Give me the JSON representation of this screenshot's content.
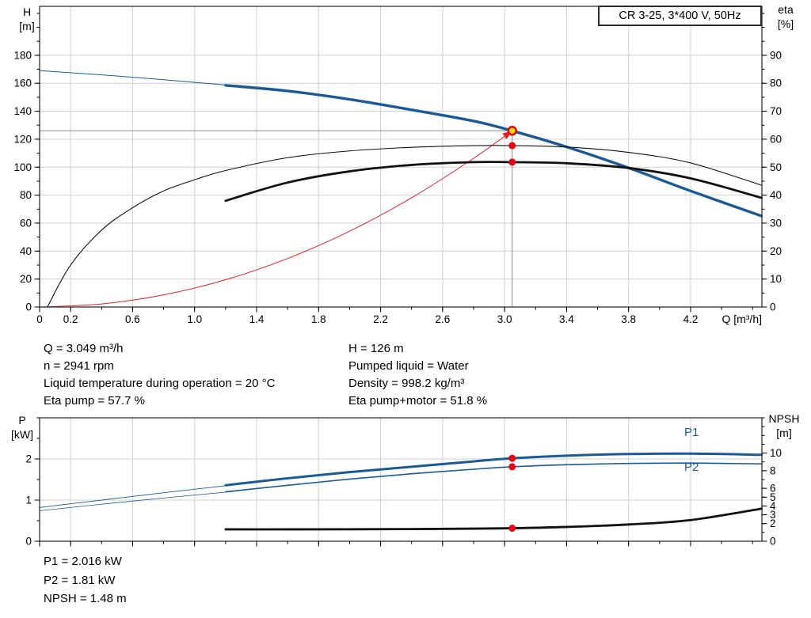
{
  "title_box": "CR 3-25, 3*400 V, 50Hz",
  "colors": {
    "curve_blue": "#1a5a96",
    "curve_black": "#111111",
    "curve_red": "#dd2222",
    "marker_red": "#e30613",
    "duty_fill": "#ffd800",
    "grid": "#d0d0d0",
    "crosshair": "#8c8c8c",
    "frame": "#333333"
  },
  "axis_titles": {
    "top_left_1": "H",
    "top_left_2": "[m]",
    "top_right_1": "eta",
    "top_right_2": "[%]",
    "x": "Q [m³/h]",
    "bottom_left_1": "P",
    "bottom_left_2": "[kW]",
    "bottom_right_1": "NPSH",
    "bottom_right_2": "[m]"
  },
  "curve_labels": {
    "p1": "P1",
    "p2": "P2"
  },
  "info_top_left": [
    "Q = 3.049 m³/h",
    "n = 2941 rpm",
    "Liquid temperature during operation = 20 °C",
    "Eta pump = 57.7 %"
  ],
  "info_top_right": [
    "H = 126 m",
    "Pumped liquid = Water",
    "Density = 998.2 kg/m³",
    "Eta pump+motor = 51.8 %"
  ],
  "info_bottom": [
    "P1 = 2.016 kW",
    "P2 = 1.81 kW",
    "NPSH = 1.48 m"
  ],
  "chart_data": [
    {
      "name": "hq-eta-chart",
      "type": "line",
      "title": "CR 3-25, 3*400 V, 50Hz",
      "xlabel": "Q [m³/h]",
      "x_axis": {
        "min": 0,
        "max": 4.66,
        "minor_step": 0.2,
        "ticks": [
          [
            0,
            "0"
          ],
          [
            0.2,
            "0.2"
          ],
          [
            0.6,
            "0.6"
          ],
          [
            1.0,
            "1.0"
          ],
          [
            1.4,
            "1.4"
          ],
          [
            1.8,
            "1.8"
          ],
          [
            2.2,
            "2.2"
          ],
          [
            2.6,
            "2.6"
          ],
          [
            3.0,
            "3.0"
          ],
          [
            3.4,
            "3.4"
          ],
          [
            3.8,
            "3.8"
          ],
          [
            4.2,
            "4.2"
          ]
        ]
      },
      "y_left": {
        "label": "H [m]",
        "min": 0,
        "max": 215,
        "minor_step": 10,
        "ticks": [
          [
            0,
            "0"
          ],
          [
            20,
            "20"
          ],
          [
            40,
            "40"
          ],
          [
            60,
            "60"
          ],
          [
            80,
            "80"
          ],
          [
            100,
            "100"
          ],
          [
            120,
            "120"
          ],
          [
            140,
            "140"
          ],
          [
            160,
            "160"
          ],
          [
            180,
            "180"
          ]
        ]
      },
      "y_right": {
        "label": "eta [%]",
        "min": 0,
        "max": 107.5,
        "minor_step": 5,
        "ticks": [
          [
            0,
            "0"
          ],
          [
            10,
            "10"
          ],
          [
            20,
            "20"
          ],
          [
            30,
            "30"
          ],
          [
            40,
            "40"
          ],
          [
            50,
            "50"
          ],
          [
            60,
            "60"
          ],
          [
            70,
            "70"
          ],
          [
            80,
            "80"
          ],
          [
            90,
            "90"
          ]
        ]
      },
      "crosshair": {
        "q": 3.049,
        "value": 126,
        "axis": "left"
      },
      "series": [
        {
          "name": "system-curve",
          "axis": "left",
          "color_key": "curve_red",
          "width": 1,
          "arrow": true,
          "points": [
            [
              0,
              0
            ],
            [
              0.4,
              2.2
            ],
            [
              0.8,
              8.7
            ],
            [
              1.2,
              19.5
            ],
            [
              1.6,
              34.7
            ],
            [
              2.0,
              54.2
            ],
            [
              2.4,
              78.1
            ],
            [
              2.8,
              106.3
            ],
            [
              3.049,
              126
            ]
          ]
        },
        {
          "name": "head-curve-lead",
          "axis": "left",
          "color_key": "curve_blue",
          "width": 1,
          "points": [
            [
              0,
              169
            ],
            [
              0.4,
              166
            ],
            [
              0.8,
              162.5
            ],
            [
              1.25,
              158.3
            ]
          ]
        },
        {
          "name": "head-curve",
          "axis": "left",
          "color_key": "curve_blue",
          "width": 3.4,
          "points": [
            [
              1.2,
              158.5
            ],
            [
              1.6,
              154.5
            ],
            [
              2.0,
              148.5
            ],
            [
              2.4,
              141
            ],
            [
              2.8,
              133
            ],
            [
              3.049,
              126
            ],
            [
              3.4,
              114.5
            ],
            [
              3.8,
              99.5
            ],
            [
              4.2,
              83
            ],
            [
              4.66,
              65
            ]
          ]
        },
        {
          "name": "eta-pump-curve",
          "axis": "right",
          "color_key": "curve_black",
          "width": 1.1,
          "points": [
            [
              0.05,
              0
            ],
            [
              0.2,
              15
            ],
            [
              0.4,
              27.5
            ],
            [
              0.6,
              35.5
            ],
            [
              0.8,
              41.5
            ],
            [
              1.0,
              45.5
            ],
            [
              1.2,
              48.8
            ],
            [
              1.6,
              53.4
            ],
            [
              2.0,
              55.8
            ],
            [
              2.4,
              57.1
            ],
            [
              2.8,
              57.7
            ],
            [
              3.049,
              57.7
            ],
            [
              3.4,
              57.2
            ],
            [
              3.8,
              55.3
            ],
            [
              4.2,
              51.5
            ],
            [
              4.66,
              43.5
            ]
          ]
        },
        {
          "name": "eta-pump-motor-curve",
          "axis": "right",
          "color_key": "curve_black",
          "width": 2.8,
          "points": [
            [
              1.2,
              38
            ],
            [
              1.6,
              44.5
            ],
            [
              2.0,
              48.5
            ],
            [
              2.4,
              50.8
            ],
            [
              2.8,
              51.8
            ],
            [
              3.049,
              51.8
            ],
            [
              3.4,
              51.4
            ],
            [
              3.8,
              49.7
            ],
            [
              4.2,
              46
            ],
            [
              4.66,
              39
            ]
          ]
        }
      ],
      "markers": [
        {
          "q": 3.049,
          "v": 126,
          "axis": "left",
          "style": "duty",
          "name": "duty-point-marker"
        },
        {
          "q": 3.049,
          "v": 57.7,
          "axis": "right",
          "style": "dot",
          "name": "eta-pump-point"
        },
        {
          "q": 3.049,
          "v": 51.8,
          "axis": "right",
          "style": "dot",
          "name": "eta-pump-motor-point"
        }
      ]
    },
    {
      "name": "power-npsh-chart",
      "type": "line",
      "xlabel": "Q [m³/h]",
      "x_axis": {
        "min": 0,
        "max": 4.66,
        "minor_step": 0.2,
        "ticks": [
          [
            0,
            "0"
          ],
          [
            0.2,
            "0.2"
          ],
          [
            0.6,
            "0.6"
          ],
          [
            1.0,
            "1.0"
          ],
          [
            1.4,
            "1.4"
          ],
          [
            1.8,
            "1.8"
          ],
          [
            2.2,
            "2.2"
          ],
          [
            2.6,
            "2.6"
          ],
          [
            3.0,
            "3.0"
          ],
          [
            3.4,
            "3.4"
          ],
          [
            3.8,
            "3.8"
          ],
          [
            4.2,
            "4.2"
          ]
        ]
      },
      "y_left": {
        "label": "P [kW]",
        "min": 0,
        "max": 3,
        "minor_step": 0.5,
        "ticks": [
          [
            0,
            "0"
          ],
          [
            1,
            "1"
          ],
          [
            2,
            "2"
          ]
        ]
      },
      "y_right": {
        "label": "NPSH [m]",
        "min": 0,
        "max": 14,
        "minor_step": 1,
        "ticks": [
          [
            0,
            "0"
          ],
          [
            2,
            "2"
          ],
          [
            3,
            "3"
          ],
          [
            4,
            "4"
          ],
          [
            5,
            "5"
          ],
          [
            6,
            "6"
          ],
          [
            8,
            "8"
          ],
          [
            10,
            "10"
          ]
        ]
      },
      "series": [
        {
          "name": "p1-curve-lead",
          "axis": "left",
          "color_key": "curve_blue",
          "width": 0.9,
          "points": [
            [
              0,
              0.82
            ],
            [
              0.4,
              1.0
            ],
            [
              0.8,
              1.18
            ],
            [
              1.25,
              1.37
            ]
          ]
        },
        {
          "name": "p1-curve",
          "axis": "left",
          "color_key": "curve_blue",
          "width": 3,
          "points": [
            [
              1.2,
              1.36
            ],
            [
              1.6,
              1.53
            ],
            [
              2.0,
              1.68
            ],
            [
              2.4,
              1.81
            ],
            [
              2.8,
              1.94
            ],
            [
              3.049,
              2.016
            ],
            [
              3.4,
              2.08
            ],
            [
              3.8,
              2.12
            ],
            [
              4.2,
              2.13
            ],
            [
              4.66,
              2.1
            ]
          ]
        },
        {
          "name": "p2-curve-lead",
          "axis": "left",
          "color_key": "curve_blue",
          "width": 0.8,
          "points": [
            [
              0,
              0.74
            ],
            [
              0.4,
              0.9
            ],
            [
              0.8,
              1.05
            ],
            [
              1.25,
              1.21
            ]
          ]
        },
        {
          "name": "p2-curve",
          "axis": "left",
          "color_key": "curve_blue",
          "width": 1.6,
          "points": [
            [
              1.2,
              1.2
            ],
            [
              1.6,
              1.36
            ],
            [
              2.0,
              1.51
            ],
            [
              2.4,
              1.64
            ],
            [
              2.8,
              1.75
            ],
            [
              3.049,
              1.81
            ],
            [
              3.4,
              1.86
            ],
            [
              3.8,
              1.89
            ],
            [
              4.2,
              1.9
            ],
            [
              4.66,
              1.88
            ]
          ]
        },
        {
          "name": "npsh-curve",
          "axis": "right",
          "color_key": "curve_black",
          "width": 2.8,
          "points": [
            [
              1.2,
              1.35
            ],
            [
              1.6,
              1.35
            ],
            [
              2.0,
              1.36
            ],
            [
              2.4,
              1.38
            ],
            [
              2.8,
              1.43
            ],
            [
              3.049,
              1.48
            ],
            [
              3.4,
              1.62
            ],
            [
              3.8,
              1.9
            ],
            [
              4.2,
              2.4
            ],
            [
              4.66,
              3.7
            ]
          ]
        }
      ],
      "markers": [
        {
          "q": 3.049,
          "v": 2.016,
          "axis": "left",
          "style": "dot",
          "name": "p1-point"
        },
        {
          "q": 3.049,
          "v": 1.81,
          "axis": "left",
          "style": "dot",
          "name": "p2-point"
        },
        {
          "q": 3.049,
          "v": 1.48,
          "axis": "right",
          "style": "dot",
          "name": "npsh-point"
        }
      ]
    }
  ]
}
